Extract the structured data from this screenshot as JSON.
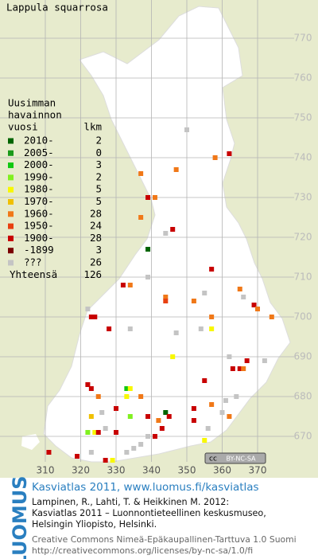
{
  "title": "Lappula squarrosa",
  "legend": {
    "heading": [
      "Uusimman",
      "havainnon",
      "vuosi"
    ],
    "count_heading": "lkm",
    "entries": [
      {
        "label": "2010-",
        "count": 2,
        "color": "#006400"
      },
      {
        "label": "2005-",
        "count": 0,
        "color": "#1a9a1a"
      },
      {
        "label": "2000-",
        "count": 3,
        "color": "#10c810"
      },
      {
        "label": "1990-",
        "count": 2,
        "color": "#80f020"
      },
      {
        "label": "1980-",
        "count": 5,
        "color": "#f8f800"
      },
      {
        "label": "1970-",
        "count": 5,
        "color": "#f0c000"
      },
      {
        "label": "1960-",
        "count": 28,
        "color": "#f07818"
      },
      {
        "label": "1950-",
        "count": 24,
        "color": "#e84010"
      },
      {
        "label": "1900-",
        "count": 28,
        "color": "#c80000"
      },
      {
        "label": "-1899",
        "count": 3,
        "color": "#7a0000"
      },
      {
        "label": "???",
        "count": 26,
        "color": "#c4c4c4"
      }
    ],
    "total_label": "Yhteensä",
    "total": 126
  },
  "map": {
    "eticks": [
      310,
      320,
      330,
      340,
      350,
      360,
      370
    ],
    "nticks": [
      670,
      680,
      690,
      700,
      710,
      720,
      730,
      740,
      750,
      760,
      770
    ],
    "license_badge": [
      "cc",
      "BY-NC-SA"
    ],
    "observations": [
      [
        350,
        747,
        10
      ],
      [
        362,
        741,
        8
      ],
      [
        358,
        740,
        6
      ],
      [
        337,
        736,
        6
      ],
      [
        347,
        737,
        6
      ],
      [
        339,
        730,
        8
      ],
      [
        341,
        730,
        6
      ],
      [
        337,
        725,
        6
      ],
      [
        346,
        722,
        8
      ],
      [
        344,
        721,
        10
      ],
      [
        339,
        717,
        0
      ],
      [
        357,
        712,
        8
      ],
      [
        332,
        708,
        8
      ],
      [
        334,
        708,
        6
      ],
      [
        339,
        710,
        10
      ],
      [
        355,
        706,
        10
      ],
      [
        344,
        705,
        6
      ],
      [
        344,
        704,
        7
      ],
      [
        352,
        704,
        6
      ],
      [
        365,
        707,
        6
      ],
      [
        366,
        705,
        10
      ],
      [
        369,
        703,
        8
      ],
      [
        370,
        702,
        6
      ],
      [
        322,
        702,
        10
      ],
      [
        323,
        700,
        8
      ],
      [
        324,
        700,
        8
      ],
      [
        357,
        700,
        6
      ],
      [
        357,
        697,
        4
      ],
      [
        354,
        697,
        10
      ],
      [
        328,
        697,
        8
      ],
      [
        334,
        697,
        10
      ],
      [
        374,
        700,
        6
      ],
      [
        347,
        696,
        10
      ],
      [
        346,
        690,
        4
      ],
      [
        367,
        689,
        8
      ],
      [
        362,
        690,
        10
      ],
      [
        365,
        687,
        8
      ],
      [
        363,
        687,
        8
      ],
      [
        366,
        687,
        6
      ],
      [
        355,
        684,
        8
      ],
      [
        372,
        689,
        10
      ],
      [
        322,
        683,
        8
      ],
      [
        323,
        682,
        8
      ],
      [
        325,
        680,
        6
      ],
      [
        333,
        682,
        2
      ],
      [
        334,
        682,
        4
      ],
      [
        333,
        680,
        4
      ],
      [
        337,
        680,
        6
      ],
      [
        361,
        679,
        10
      ],
      [
        364,
        680,
        10
      ],
      [
        323,
        675,
        5
      ],
      [
        326,
        676,
        10
      ],
      [
        330,
        677,
        8
      ],
      [
        334,
        675,
        3
      ],
      [
        339,
        675,
        8
      ],
      [
        344,
        676,
        0
      ],
      [
        345,
        675,
        8
      ],
      [
        342,
        674,
        6
      ],
      [
        352,
        677,
        8
      ],
      [
        352,
        674,
        8
      ],
      [
        357,
        678,
        6
      ],
      [
        360,
        676,
        10
      ],
      [
        362,
        675,
        6
      ],
      [
        322,
        671,
        3
      ],
      [
        324,
        671,
        4
      ],
      [
        325,
        671,
        8
      ],
      [
        327,
        672,
        10
      ],
      [
        330,
        671,
        8
      ],
      [
        339,
        670,
        10
      ],
      [
        341,
        670,
        8
      ],
      [
        343,
        672,
        8
      ],
      [
        355,
        669,
        4
      ],
      [
        356,
        672,
        10
      ],
      [
        311,
        666,
        8
      ],
      [
        319,
        665,
        8
      ],
      [
        323,
        666,
        10
      ],
      [
        327,
        664,
        8
      ],
      [
        329,
        664,
        4
      ],
      [
        333,
        666,
        10
      ],
      [
        335,
        667,
        10
      ],
      [
        337,
        668,
        10
      ]
    ]
  },
  "footer": {
    "logo": "LUOMUS",
    "headline": "Kasviatlas 2011, www.luomus.fi/kasviatlas",
    "citation": [
      "Lampinen, R., Lahti, T. & Heikkinen M. 2012:",
      "Kasviatlas 2011 – Luonnontieteellinen keskusmuseo,",
      "Helsingin Yliopisto, Helsinki."
    ],
    "license": [
      "Creative Commons Nimeä-Epäkaupallinen-Tarttuva 1.0 Suomi",
      "http://creativecommons.org/licenses/by-nc-sa/1.0/fi"
    ]
  }
}
